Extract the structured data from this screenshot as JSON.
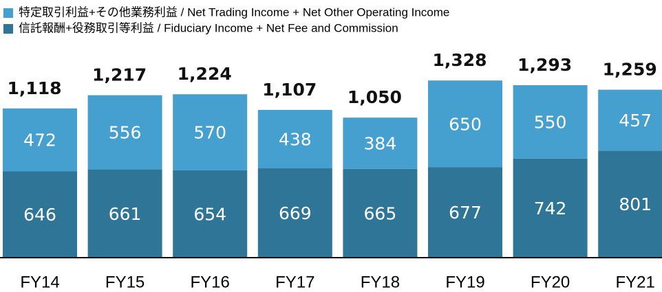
{
  "chart_data": {
    "type": "stacked_bar",
    "categories": [
      "FY14",
      "FY15",
      "FY16",
      "FY17",
      "FY18",
      "FY19",
      "FY20",
      "FY21"
    ],
    "series": [
      {
        "name": "信託報酬+役務取引等利益 / Fiduciary Income + Net Fee and Commission",
        "color": "#2f7597",
        "values": [
          646,
          661,
          654,
          669,
          665,
          677,
          742,
          801
        ]
      },
      {
        "name": "特定取引利益+その他業務利益 / Net Trading Income + Net Other Operating Income",
        "color": "#459fcf",
        "values": [
          472,
          556,
          570,
          438,
          384,
          650,
          550,
          457
        ]
      }
    ],
    "totals": [
      1118,
      1217,
      1224,
      1107,
      1050,
      1328,
      1293,
      1259
    ],
    "total_labels": [
      "1,118",
      "1,217",
      "1,224",
      "1,107",
      "1,050",
      "1,328",
      "1,293",
      "1,259"
    ]
  }
}
